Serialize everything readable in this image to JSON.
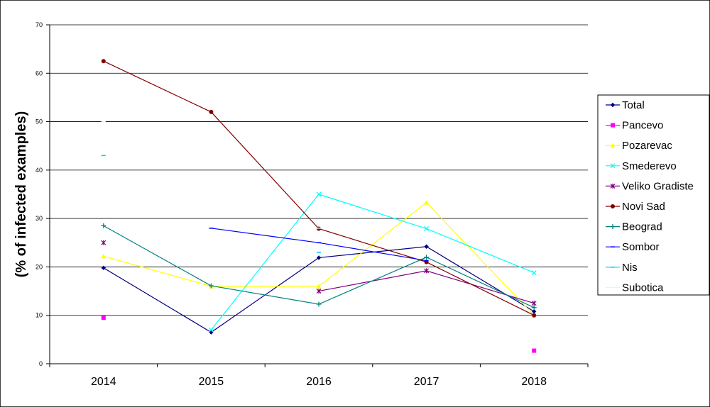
{
  "chart_data": {
    "type": "line",
    "title": "",
    "xlabel": "",
    "ylabel": "(% of infected examples)",
    "categories": [
      "2014",
      "2015",
      "2016",
      "2017",
      "2018"
    ],
    "ylim": [
      0,
      70
    ],
    "yticks": [
      0,
      10,
      20,
      30,
      40,
      50,
      60,
      70
    ],
    "grid": true,
    "legend_position": "right",
    "series": [
      {
        "name": "Total",
        "color": "#000080",
        "marker": "diamond",
        "values": [
          19.8,
          6.5,
          21.9,
          24.2,
          10.8
        ]
      },
      {
        "name": "Pancevo",
        "color": "#ff00ff",
        "marker": "square",
        "values": [
          9.5,
          null,
          null,
          null,
          2.7
        ]
      },
      {
        "name": "Pozarevac",
        "color": "#ffff00",
        "marker": "triangle",
        "values": [
          22.2,
          16.0,
          16.0,
          33.3,
          10.0
        ]
      },
      {
        "name": "Smederevo",
        "color": "#00ffff",
        "marker": "x",
        "values": [
          null,
          7.0,
          35.0,
          27.9,
          18.8
        ]
      },
      {
        "name": "Veliko Gradiste",
        "color": "#800080",
        "marker": "asterisk",
        "values": [
          25.0,
          null,
          15.0,
          19.2,
          12.5
        ]
      },
      {
        "name": "Novi Sad",
        "color": "#800000",
        "marker": "circle",
        "values": [
          62.5,
          52.0,
          27.9,
          21.0,
          10.0
        ]
      },
      {
        "name": "Beograd",
        "color": "#008080",
        "marker": "plus",
        "values": [
          28.5,
          16.1,
          12.3,
          22.0,
          11.6
        ]
      },
      {
        "name": "Sombor",
        "color": "#0000ff",
        "marker": "dash",
        "values": [
          null,
          28.0,
          25.0,
          21.3,
          null
        ]
      },
      {
        "name": "Nis",
        "color": "#00ccff",
        "marker": "dash",
        "values": [
          43.0,
          null,
          23.0,
          null,
          null
        ]
      },
      {
        "name": "Subotica",
        "color": "#ccffff",
        "marker": "dash",
        "values": [
          50.0,
          null,
          28.0,
          null,
          null
        ]
      }
    ]
  }
}
